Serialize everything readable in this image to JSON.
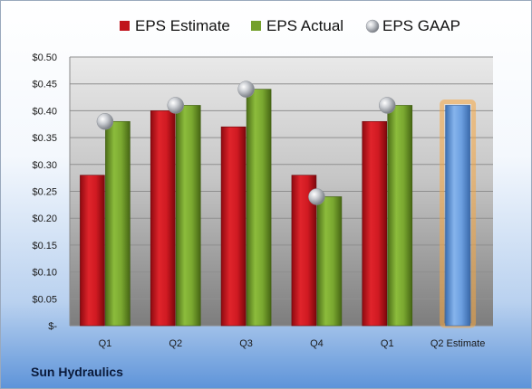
{
  "company": "Sun Hydraulics",
  "chart_data": {
    "type": "bar",
    "categories": [
      "Q1",
      "Q2",
      "Q3",
      "Q4",
      "Q1",
      "Q2 Estimate"
    ],
    "series": [
      {
        "name": "EPS Estimate",
        "values": [
          0.28,
          0.4,
          0.37,
          0.28,
          0.38,
          null
        ],
        "color": "#c0141c"
      },
      {
        "name": "EPS Actual",
        "values": [
          0.38,
          0.41,
          0.44,
          0.24,
          0.41,
          null
        ],
        "color": "#74a02c"
      },
      {
        "name": "EPS GAAP",
        "type": "scatter",
        "values": [
          0.38,
          0.41,
          0.44,
          0.24,
          0.41,
          null
        ],
        "color": "#b3b8bf"
      }
    ],
    "estimate_bar": {
      "category": "Q2 Estimate",
      "value": 0.41,
      "color": "#5b93d6",
      "highlight_color": "#f5a640"
    },
    "ylim": [
      0,
      0.5
    ],
    "yticks": [
      0,
      0.05,
      0.1,
      0.15,
      0.2,
      0.25,
      0.3,
      0.35,
      0.4,
      0.45,
      0.5
    ],
    "ytick_labels": [
      "$-",
      "$0.05",
      "$0.10",
      "$0.15",
      "$0.20",
      "$0.25",
      "$0.30",
      "$0.35",
      "$0.40",
      "$0.45",
      "$0.50"
    ],
    "legend_position": "top",
    "grid": true
  }
}
